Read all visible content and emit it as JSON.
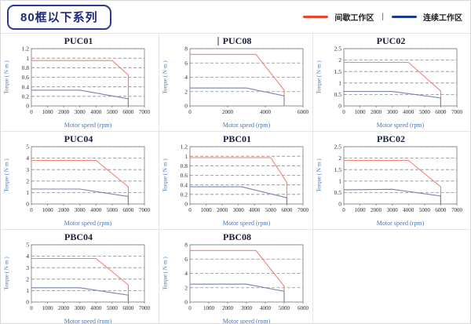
{
  "page": {
    "title_badge": "80框以下系列"
  },
  "legend": {
    "items": [
      {
        "name": "intermittent-zone",
        "label": "间歇工作区",
        "color": "#e8432c"
      },
      {
        "name": "continuous-zone",
        "label": "连续工作区",
        "color": "#1e3a8c"
      }
    ],
    "separator": "|"
  },
  "colors": {
    "curve_red": "#ef8176",
    "curve_blue": "#7684ae",
    "plot_border": "#777777",
    "grid_dash": "#8a8a8a",
    "tick_text": "#2b2b33",
    "title_text": "#1a2040",
    "axis_label_blue": "#4a76b8"
  },
  "chart_data": [
    {
      "type": "line",
      "title": "PUC01",
      "xlabel": "Motor speed (rpm)",
      "ylabel": "Torque ( N·m )",
      "xlim": [
        0,
        7000
      ],
      "xstep": 1000,
      "ylim": [
        0,
        1.2
      ],
      "ystep": 0.2,
      "grid": "dashed-horizontal",
      "series": [
        {
          "name": "间歇工作区",
          "color_key": "curve_red",
          "points": [
            [
              0,
              0.95
            ],
            [
              5000,
              0.95
            ],
            [
              6000,
              0.65
            ],
            [
              6000,
              0
            ]
          ]
        },
        {
          "name": "连续工作区",
          "color_key": "curve_blue",
          "points": [
            [
              0,
              0.33
            ],
            [
              3000,
              0.33
            ],
            [
              6000,
              0.15
            ],
            [
              6000,
              0
            ]
          ]
        }
      ]
    },
    {
      "type": "line",
      "title": "PUC08",
      "caret": true,
      "xlabel": "Motor speed (rpm)",
      "ylabel": "Torque ( N·m )",
      "xlim": [
        0,
        6000
      ],
      "xstep": 2000,
      "ylim": [
        0,
        8
      ],
      "ystep": 2,
      "grid": "dashed-horizontal",
      "series": [
        {
          "name": "间歇工作区",
          "color_key": "curve_red",
          "points": [
            [
              0,
              7.2
            ],
            [
              3500,
              7.2
            ],
            [
              5000,
              2.2
            ],
            [
              5000,
              0
            ]
          ]
        },
        {
          "name": "连续工作区",
          "color_key": "curve_blue",
          "points": [
            [
              0,
              2.5
            ],
            [
              3000,
              2.5
            ],
            [
              5000,
              1.4
            ],
            [
              5000,
              0
            ]
          ]
        }
      ]
    },
    {
      "type": "line",
      "title": "PUC02",
      "xlabel": "Motor speed (rpm)",
      "ylabel": "Torque ( N·m )",
      "xlim": [
        0,
        7000
      ],
      "xstep": 1000,
      "ylim": [
        0,
        2.5
      ],
      "ystep": 0.5,
      "grid": "dashed-horizontal",
      "series": [
        {
          "name": "间歇工作区",
          "color_key": "curve_red",
          "points": [
            [
              0,
              1.9
            ],
            [
              4000,
              1.9
            ],
            [
              6000,
              0.65
            ],
            [
              6000,
              0
            ]
          ]
        },
        {
          "name": "连续工作区",
          "color_key": "curve_blue",
          "points": [
            [
              0,
              0.63
            ],
            [
              3000,
              0.63
            ],
            [
              6000,
              0.35
            ],
            [
              6000,
              0
            ]
          ]
        }
      ]
    },
    {
      "type": "line",
      "title": "PUC04",
      "xlabel": "Motor speed (rpm)",
      "ylabel": "Torque ( N·m )",
      "xlim": [
        0,
        7000
      ],
      "xstep": 1000,
      "ylim": [
        0,
        5
      ],
      "ystep": 1,
      "grid": "dashed-horizontal",
      "series": [
        {
          "name": "间歇工作区",
          "color_key": "curve_red",
          "points": [
            [
              0,
              3.8
            ],
            [
              4000,
              3.8
            ],
            [
              6000,
              1.5
            ],
            [
              6000,
              0
            ]
          ]
        },
        {
          "name": "连续工作区",
          "color_key": "curve_blue",
          "points": [
            [
              0,
              1.3
            ],
            [
              3000,
              1.3
            ],
            [
              6000,
              0.65
            ],
            [
              6000,
              0
            ]
          ]
        }
      ]
    },
    {
      "type": "line",
      "title": "PBC01",
      "xlabel": "Motor speed (rpm)",
      "ylabel": "Torque ( N·m )",
      "xlim": [
        0,
        7000
      ],
      "xstep": 1000,
      "ylim": [
        0,
        1.2
      ],
      "ystep": 0.2,
      "grid": "dashed-horizontal",
      "series": [
        {
          "name": "间歇工作区",
          "color_key": "curve_red",
          "points": [
            [
              0,
              0.97
            ],
            [
              5000,
              0.97
            ],
            [
              6000,
              0.45
            ],
            [
              6000,
              0
            ]
          ]
        },
        {
          "name": "连续工作区",
          "color_key": "curve_blue",
          "points": [
            [
              0,
              0.36
            ],
            [
              3200,
              0.36
            ],
            [
              6000,
              0.13
            ],
            [
              6000,
              0
            ]
          ]
        }
      ]
    },
    {
      "type": "line",
      "title": "PBC02",
      "xlabel": "Motor speed (rpm)",
      "ylabel": "Torque ( N·m )",
      "xlim": [
        0,
        7000
      ],
      "xstep": 1000,
      "ylim": [
        0,
        2.5
      ],
      "ystep": 0.5,
      "grid": "dashed-horizontal",
      "series": [
        {
          "name": "间歇工作区",
          "color_key": "curve_red",
          "points": [
            [
              0,
              1.9
            ],
            [
              4000,
              1.9
            ],
            [
              6000,
              0.75
            ],
            [
              6000,
              0
            ]
          ]
        },
        {
          "name": "连续工作区",
          "color_key": "curve_blue",
          "points": [
            [
              0,
              0.62
            ],
            [
              3000,
              0.64
            ],
            [
              6000,
              0.35
            ],
            [
              6000,
              0
            ]
          ]
        }
      ]
    },
    {
      "type": "line",
      "title": "PBC04",
      "xlabel": "Motor speed (rpm)",
      "ylabel": "Torque ( N·m )",
      "xlim": [
        0,
        7000
      ],
      "xstep": 1000,
      "ylim": [
        0,
        5
      ],
      "ystep": 1,
      "grid": "dashed-horizontal",
      "series": [
        {
          "name": "间歇工作区",
          "color_key": "curve_red",
          "points": [
            [
              0,
              3.8
            ],
            [
              4000,
              3.8
            ],
            [
              6000,
              1.5
            ],
            [
              6000,
              0
            ]
          ]
        },
        {
          "name": "连续工作区",
          "color_key": "curve_blue",
          "points": [
            [
              0,
              1.25
            ],
            [
              3000,
              1.25
            ],
            [
              6000,
              0.6
            ],
            [
              6000,
              0
            ]
          ]
        }
      ]
    },
    {
      "type": "line",
      "title": "PBC08",
      "xlabel": "Motor speed (rpm)",
      "ylabel": "Torque ( N·m )",
      "xlim": [
        0,
        6000
      ],
      "xstep": 1000,
      "ylim": [
        0,
        8
      ],
      "ystep": 2,
      "grid": "dashed-horizontal",
      "series": [
        {
          "name": "间歇工作区",
          "color_key": "curve_red",
          "points": [
            [
              0,
              7.2
            ],
            [
              3500,
              7.2
            ],
            [
              5000,
              2.2
            ],
            [
              5000,
              0
            ]
          ]
        },
        {
          "name": "连续工作区",
          "color_key": "curve_blue",
          "points": [
            [
              0,
              2.5
            ],
            [
              3000,
              2.5
            ],
            [
              5000,
              1.5
            ],
            [
              5000,
              0
            ]
          ]
        }
      ]
    }
  ]
}
